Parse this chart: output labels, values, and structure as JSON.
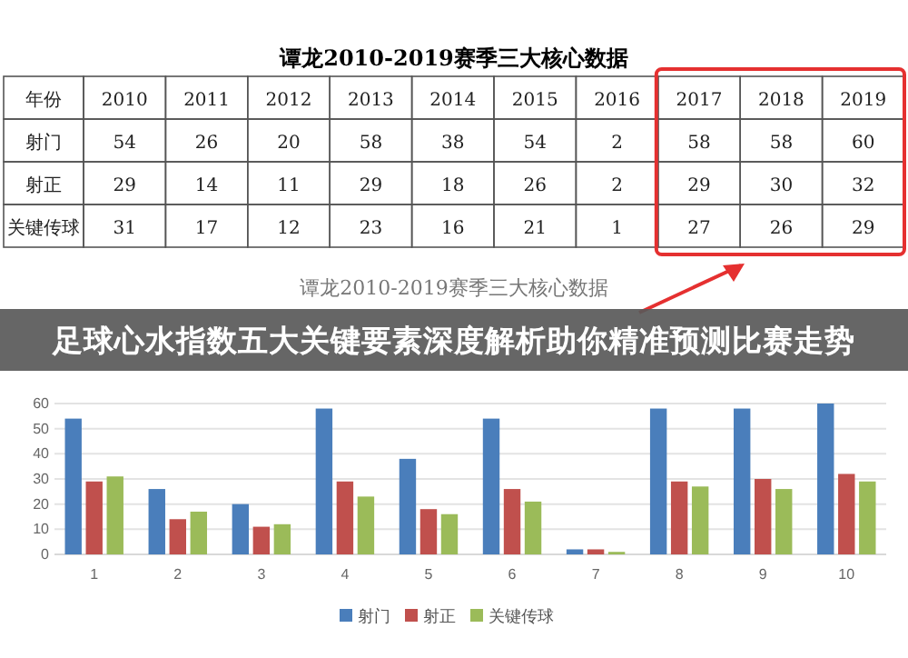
{
  "chart_data": [
    {
      "type": "heatmap",
      "title": "谭龙2010-2019赛季三大核心数据",
      "xlabel": "年份",
      "categories": [
        "2010",
        "2011",
        "2012",
        "2013",
        "2014",
        "2015",
        "2016",
        "2017",
        "2018",
        "2019"
      ],
      "y_categories": [
        "射门",
        "射正",
        "关键传球"
      ],
      "cells": [
        [
          54,
          26,
          20,
          58,
          38,
          54,
          2,
          58,
          58,
          60
        ],
        [
          29,
          14,
          11,
          29,
          18,
          26,
          2,
          29,
          30,
          32
        ],
        [
          31,
          17,
          12,
          23,
          16,
          21,
          1,
          27,
          26,
          29
        ]
      ],
      "data_labels": true
    },
    {
      "type": "bar",
      "title": "谭龙2010-2019赛季三大核心数据",
      "annotations": [
        "足球心水指数五大关键要素深度解析助你精准预测比赛走势"
      ],
      "categories": [
        "1",
        "2",
        "3",
        "4",
        "5",
        "6",
        "7",
        "8",
        "9",
        "10"
      ],
      "series": [
        {
          "name": "射门",
          "color": "#4a7ebb",
          "values": [
            54,
            26,
            20,
            58,
            38,
            54,
            2,
            58,
            58,
            60
          ]
        },
        {
          "name": "射正",
          "color": "#c0504d",
          "values": [
            29,
            14,
            11,
            29,
            18,
            26,
            2,
            29,
            30,
            32
          ]
        },
        {
          "name": "关键传球",
          "color": "#9bbb59",
          "values": [
            31,
            17,
            12,
            23,
            16,
            21,
            1,
            27,
            26,
            29
          ]
        }
      ],
      "ylim": [
        0,
        60
      ],
      "yticks": [
        0,
        10,
        20,
        30,
        40,
        50,
        60
      ],
      "grid": "y",
      "legend": "bottom"
    }
  ]
}
